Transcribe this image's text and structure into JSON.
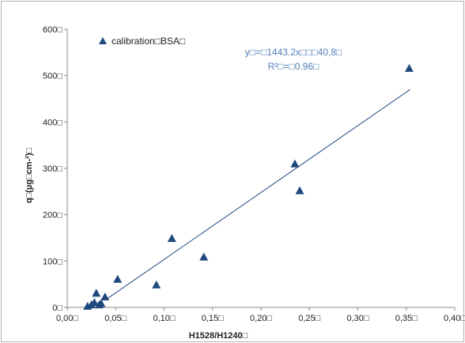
{
  "chart_data": {
    "type": "scatter",
    "title": "",
    "xlabel": "H1528/H1240□",
    "ylabel": "q□(µg□cm-²)□",
    "xlim": [
      0,
      0.4
    ],
    "ylim": [
      0,
      600
    ],
    "grid": false,
    "legend_position": "top-left",
    "x_tick_labels": [
      "0,00□",
      "0,05□",
      "0,10□",
      "0,15□",
      "0,20□",
      "0,25□",
      "0,30□",
      "0,35□",
      "0,40□"
    ],
    "y_tick_labels": [
      "0□",
      "100□",
      "200□",
      "300□",
      "400□",
      "500□",
      "600□"
    ],
    "x_ticks": [
      0,
      0.05,
      0.1,
      0.15,
      0.2,
      0.25,
      0.3,
      0.35,
      0.4
    ],
    "y_ticks": [
      0,
      100,
      200,
      300,
      400,
      500,
      600
    ],
    "series": [
      {
        "name": "calibration□BSA□",
        "color": "#1f497d",
        "marker": "triangle",
        "points": [
          {
            "x": 0.021,
            "y": 2
          },
          {
            "x": 0.025,
            "y": 5
          },
          {
            "x": 0.028,
            "y": 10
          },
          {
            "x": 0.03,
            "y": 30
          },
          {
            "x": 0.033,
            "y": 5
          },
          {
            "x": 0.035,
            "y": 8
          },
          {
            "x": 0.039,
            "y": 22
          },
          {
            "x": 0.052,
            "y": 60
          },
          {
            "x": 0.092,
            "y": 48
          },
          {
            "x": 0.108,
            "y": 148
          },
          {
            "x": 0.141,
            "y": 108
          },
          {
            "x": 0.235,
            "y": 309
          },
          {
            "x": 0.24,
            "y": 251
          },
          {
            "x": 0.353,
            "y": 515
          }
        ]
      }
    ],
    "trendline": {
      "type": "linear",
      "slope": 1443.2,
      "intercept": -40.8,
      "x_range": [
        0.04,
        0.354
      ],
      "color": "#1f497d"
    },
    "annotations": {
      "equation": "y□=□1443.2x□□□40,8□",
      "r_squared": "R²□=□0.96□"
    }
  }
}
